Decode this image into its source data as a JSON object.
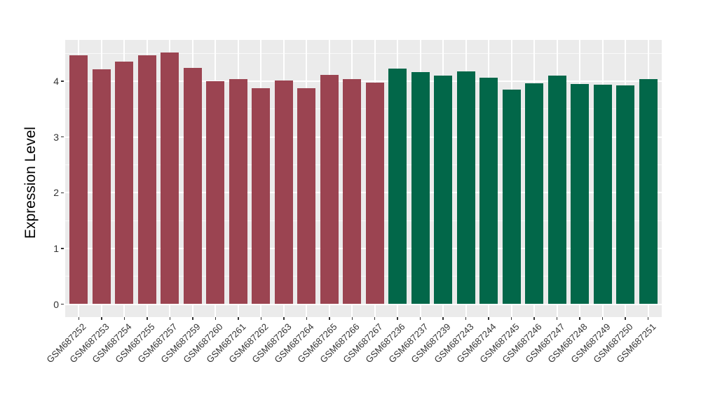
{
  "chart_data": {
    "type": "bar",
    "title": "",
    "xlabel": "",
    "ylabel": "Expression Level",
    "ylim": [
      0,
      4.74
    ],
    "yticks": [
      0,
      1,
      2,
      3,
      4
    ],
    "yticks_minor": [
      0.5,
      1.5,
      2.5,
      3.5,
      4.5
    ],
    "grid": "white major and minor horizontal lines plus white vertical lines at each category, on gray panel",
    "legend_position": "none",
    "panel_bg": "#EBEBEB",
    "figure_bg": "#FFFFFF",
    "group_colors": {
      "maroon": "#9B4451",
      "green": "#026749"
    },
    "categories": [
      "GSM687252",
      "GSM687253",
      "GSM687254",
      "GSM687255",
      "GSM687257",
      "GSM687259",
      "GSM687260",
      "GSM687261",
      "GSM687262",
      "GSM687263",
      "GSM687264",
      "GSM687265",
      "GSM687266",
      "GSM687267",
      "GSM687236",
      "GSM687237",
      "GSM687239",
      "GSM687243",
      "GSM687244",
      "GSM687245",
      "GSM687246",
      "GSM687247",
      "GSM687248",
      "GSM687249",
      "GSM687250",
      "GSM687251"
    ],
    "values": [
      4.46,
      4.22,
      4.35,
      4.46,
      4.52,
      4.24,
      4.0,
      4.04,
      3.88,
      4.02,
      3.88,
      4.11,
      4.04,
      3.97,
      4.23,
      4.17,
      4.1,
      4.18,
      4.06,
      3.85,
      3.96,
      4.1,
      3.95,
      3.94,
      3.92,
      4.04
    ],
    "groups": [
      "maroon",
      "maroon",
      "maroon",
      "maroon",
      "maroon",
      "maroon",
      "maroon",
      "maroon",
      "maroon",
      "maroon",
      "maroon",
      "maroon",
      "maroon",
      "maroon",
      "green",
      "green",
      "green",
      "green",
      "green",
      "green",
      "green",
      "green",
      "green",
      "green",
      "green",
      "green"
    ]
  }
}
